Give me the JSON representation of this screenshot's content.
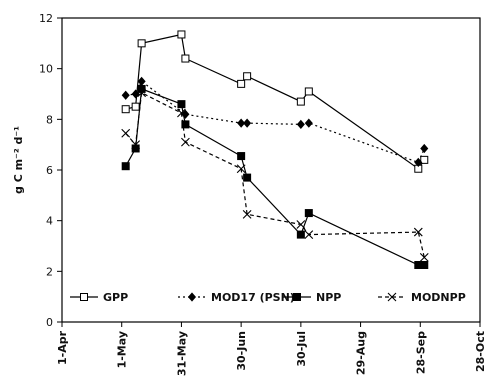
{
  "chart_data": {
    "type": "line",
    "ylabel": "g C m⁻² d⁻¹",
    "ylim": [
      0,
      12
    ],
    "yticks": [
      0,
      2,
      4,
      6,
      8,
      10,
      12
    ],
    "xlim": [
      "2013-04-01",
      "2013-10-28"
    ],
    "xticks": [
      {
        "date": "2013-04-01",
        "label": "1-Apr"
      },
      {
        "date": "2013-05-01",
        "label": "1-May"
      },
      {
        "date": "2013-05-31",
        "label": "31-May"
      },
      {
        "date": "2013-06-30",
        "label": "30-Jun"
      },
      {
        "date": "2013-07-30",
        "label": "30-Jul"
      },
      {
        "date": "2013-08-29",
        "label": "29-Aug"
      },
      {
        "date": "2013-09-28",
        "label": "28-Sep"
      },
      {
        "date": "2013-10-28",
        "label": "28-Oct"
      }
    ],
    "grid": false,
    "legend_position": "bottom-inside",
    "series": [
      {
        "name": "GPP",
        "marker": "open-square",
        "line": "solid",
        "color": "#000000",
        "points": [
          {
            "x": "2013-05-03",
            "y": 8.4
          },
          {
            "x": "2013-05-08",
            "y": 8.5
          },
          {
            "x": "2013-05-11",
            "y": 11.0
          },
          {
            "x": "2013-05-31",
            "y": 11.35
          },
          {
            "x": "2013-06-02",
            "y": 10.4
          },
          {
            "x": "2013-06-30",
            "y": 9.4
          },
          {
            "x": "2013-07-03",
            "y": 9.7
          },
          {
            "x": "2013-07-30",
            "y": 8.7
          },
          {
            "x": "2013-08-03",
            "y": 9.1
          },
          {
            "x": "2013-09-27",
            "y": 6.05
          },
          {
            "x": "2013-09-30",
            "y": 6.4
          }
        ]
      },
      {
        "name": "MOD17 (PSN)",
        "marker": "filled-diamond",
        "line": "dotted",
        "color": "#000000",
        "points": [
          {
            "x": "2013-05-03",
            "y": 8.95
          },
          {
            "x": "2013-05-08",
            "y": 9.0
          },
          {
            "x": "2013-05-11",
            "y": 9.5
          },
          {
            "x": "2013-06-02",
            "y": 8.2
          },
          {
            "x": "2013-06-30",
            "y": 7.85
          },
          {
            "x": "2013-07-03",
            "y": 7.85
          },
          {
            "x": "2013-07-30",
            "y": 7.8
          },
          {
            "x": "2013-08-03",
            "y": 7.85
          },
          {
            "x": "2013-09-27",
            "y": 6.3
          },
          {
            "x": "2013-09-30",
            "y": 6.85
          }
        ]
      },
      {
        "name": "NPP",
        "marker": "filled-square",
        "line": "solid",
        "color": "#000000",
        "points": [
          {
            "x": "2013-05-03",
            "y": 6.15
          },
          {
            "x": "2013-05-08",
            "y": 6.85
          },
          {
            "x": "2013-05-11",
            "y": 9.2
          },
          {
            "x": "2013-05-31",
            "y": 8.6
          },
          {
            "x": "2013-06-02",
            "y": 7.8
          },
          {
            "x": "2013-06-30",
            "y": 6.55
          },
          {
            "x": "2013-07-03",
            "y": 5.7
          },
          {
            "x": "2013-07-30",
            "y": 3.45
          },
          {
            "x": "2013-08-03",
            "y": 4.3
          },
          {
            "x": "2013-09-27",
            "y": 2.25
          },
          {
            "x": "2013-09-30",
            "y": 2.25
          }
        ]
      },
      {
        "name": "MODNPP",
        "marker": "x",
        "line": "dashed",
        "color": "#000000",
        "points": [
          {
            "x": "2013-05-03",
            "y": 7.45
          },
          {
            "x": "2013-05-08",
            "y": 7.0
          },
          {
            "x": "2013-05-11",
            "y": 9.05
          },
          {
            "x": "2013-05-31",
            "y": 8.25
          },
          {
            "x": "2013-06-02",
            "y": 7.1
          },
          {
            "x": "2013-06-30",
            "y": 6.05
          },
          {
            "x": "2013-07-03",
            "y": 4.25
          },
          {
            "x": "2013-07-30",
            "y": 3.85
          },
          {
            "x": "2013-08-03",
            "y": 3.45
          },
          {
            "x": "2013-09-27",
            "y": 3.55
          },
          {
            "x": "2013-09-30",
            "y": 2.55
          }
        ]
      }
    ]
  }
}
